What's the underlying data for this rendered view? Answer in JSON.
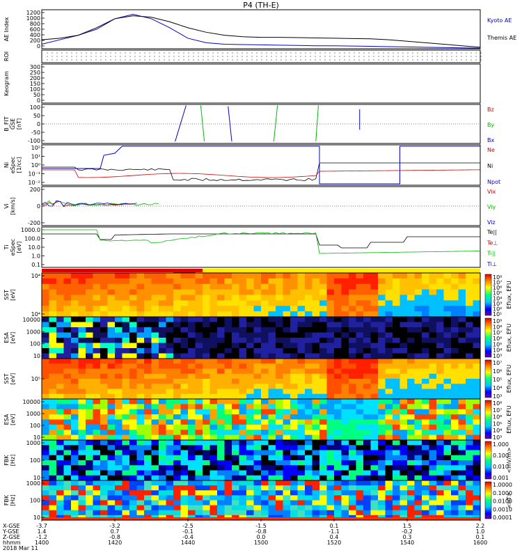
{
  "title": "P4 (TH-E)",
  "colors": {
    "kyoto": "#0000cc",
    "themis": "#000000",
    "red": "#cc0000",
    "green": "#00bb00",
    "blue": "#0000cc",
    "black": "#000000"
  },
  "chart_data": {
    "type": "line",
    "time_axis": {
      "ticks": [
        "1400",
        "1420",
        "1440",
        "1500",
        "1520",
        "1540",
        "1600"
      ],
      "date": "2018 Mar 11",
      "rows": [
        {
          "label": "X-GSE",
          "values": [
            "-3.7",
            "-3.2",
            "-2.5",
            "-1.5",
            "0.1",
            "1.5",
            "2.2"
          ]
        },
        {
          "label": "Y-GSE",
          "values": [
            "1.4",
            "0.7",
            "-0.1",
            "-0.8",
            "-1.1",
            "-0.2",
            "1.0"
          ]
        },
        {
          "label": "Z-GSE",
          "values": [
            "-1.2",
            "-0.8",
            "-0.4",
            "0.0",
            "0.4",
            "0.3",
            "0.1"
          ]
        },
        {
          "label": "hhmm",
          "values": [
            "1400",
            "1420",
            "1440",
            "1500",
            "1520",
            "1540",
            "1600"
          ]
        }
      ]
    },
    "panels": [
      {
        "id": "ae",
        "ylabel": [
          "AE Index"
        ],
        "yticks": [
          "1200",
          "1000",
          "800",
          "600",
          "400",
          "200",
          "0"
        ],
        "legend": [
          {
            "name": "Kyoto AE",
            "color": "#0000cc"
          },
          {
            "name": "Themis AE",
            "color": "#000000"
          }
        ],
        "ylim": [
          0,
          1300
        ],
        "series": [
          {
            "name": "Kyoto AE",
            "color": "#0000cc",
            "x": [
              0,
              5,
              10,
              15,
              20,
              25,
              30,
              35,
              40,
              45,
              50,
              55,
              60,
              65,
              70,
              75,
              80,
              85,
              90,
              95,
              100,
              105,
              110,
              115,
              120
            ],
            "y": [
              150,
              300,
              450,
              650,
              1000,
              1150,
              1000,
              700,
              350,
              200,
              150,
              140,
              130,
              120,
              110,
              100,
              100,
              90,
              80,
              70,
              60,
              50,
              40,
              30,
              20
            ]
          },
          {
            "name": "Themis AE",
            "color": "#000000",
            "x": [
              0,
              5,
              10,
              15,
              20,
              25,
              30,
              35,
              40,
              45,
              50,
              55,
              60,
              65,
              70,
              75,
              80,
              85,
              90,
              95,
              100,
              105,
              110,
              115,
              120
            ],
            "y": [
              300,
              350,
              450,
              700,
              1000,
              1100,
              1050,
              900,
              700,
              550,
              450,
              400,
              380,
              380,
              370,
              360,
              350,
              340,
              330,
              300,
              250,
              200,
              150,
              100,
              50
            ]
          }
        ]
      },
      {
        "id": "roi",
        "ylabel": [
          "ROI"
        ],
        "yticks": [],
        "kind": "dots"
      },
      {
        "id": "keogram",
        "ylabel": [
          "Keogram"
        ],
        "yticks": [
          "300",
          "250",
          "200",
          "150",
          "100",
          "50",
          "0"
        ],
        "ylim": [
          0,
          300
        ],
        "kind": "empty"
      },
      {
        "id": "bfit",
        "ylabel": [
          "B_FIT",
          "GSE",
          "[nT]"
        ],
        "yticks": [
          "100",
          "50",
          "0",
          "-50",
          "-100"
        ],
        "ylim": [
          -100,
          100
        ],
        "legend": [
          {
            "name": "Bz",
            "color": "#cc0000"
          },
          {
            "name": "By",
            "color": "#00bb00"
          },
          {
            "name": "Bx",
            "color": "#0000cc"
          }
        ],
        "segments": [
          {
            "color": "#0000cc",
            "x1": 36.5,
            "y1": -90,
            "x2": 39.5,
            "y2": 95
          },
          {
            "color": "#00bb00",
            "x1": 43.5,
            "y1": 95,
            "x2": 44.5,
            "y2": -90
          },
          {
            "color": "#0000cc",
            "x1": 51.0,
            "y1": 90,
            "x2": 52.0,
            "y2": -90
          },
          {
            "color": "#00bb00",
            "x1": 63.5,
            "y1": -90,
            "x2": 64.5,
            "y2": 95
          },
          {
            "color": "#00bb00",
            "x1": 75.0,
            "y1": -90,
            "x2": 75.7,
            "y2": 95
          },
          {
            "color": "#0000cc",
            "x1": 87.0,
            "y1": 75,
            "x2": 87.0,
            "y2": -30
          }
        ]
      },
      {
        "id": "density",
        "ylabel": [
          "Ni",
          "eSpec",
          "[1/cc]"
        ],
        "yticks": [
          "10²",
          "10¹",
          "10⁰",
          "10⁻¹",
          "10⁻²"
        ],
        "legend": [
          {
            "name": "Ne",
            "color": "#cc0000"
          },
          {
            "name": "Ni",
            "color": "#000000"
          },
          {
            "name": "Npot",
            "color": "#0000cc"
          }
        ]
      },
      {
        "id": "velocity",
        "ylabel": [
          "Vi",
          "[km/s]"
        ],
        "yticks": [
          "200",
          "0",
          "-200"
        ],
        "legend": [
          {
            "name": "Vix",
            "color": "#cc0000"
          },
          {
            "name": "Viy",
            "color": "#00bb00"
          },
          {
            "name": "Viz",
            "color": "#0000cc"
          }
        ]
      },
      {
        "id": "temperature",
        "ylabel": [
          "Ti",
          "eSpec",
          "[eV]"
        ],
        "yticks": [
          "1000.0",
          "100.0",
          "10.0",
          "1.0",
          "0.1"
        ],
        "legend": [
          {
            "name": "Te||",
            "color": "#000000"
          },
          {
            "name": "Te⊥",
            "color": "#cc0000"
          },
          {
            "name": "Ti||",
            "color": "#00bb00"
          },
          {
            "name": "Ti⊥",
            "color": "#0000cc"
          }
        ]
      },
      {
        "id": "sst_e",
        "ylabel": [
          "SST",
          "[eV]"
        ],
        "yticks": [
          "10⁴",
          "10⁴"
        ],
        "kind": "spectrogram",
        "colorbar": {
          "labels": [
            "10⁸",
            "10⁷",
            "10⁶",
            "10⁵",
            "10⁴",
            "10³",
            "10²",
            "10¹"
          ],
          "unit": "Eflux, EFU"
        }
      },
      {
        "id": "esa_e",
        "ylabel": [
          "ESA",
          "[eV]"
        ],
        "yticks": [
          "10000",
          "1000",
          "100",
          "10"
        ],
        "kind": "spectrogram",
        "colorbar": {
          "labels": [
            "10⁹",
            "10⁸",
            "10⁷",
            "10⁶",
            "10⁵",
            "10⁴",
            "10³"
          ],
          "unit": "Eflux, EFU"
        }
      },
      {
        "id": "sst_i",
        "ylabel": [
          "SST",
          "[eV]"
        ],
        "yticks": [
          "10⁵"
        ],
        "kind": "spectrogram",
        "colorbar": {
          "labels": [
            "10⁷",
            "10⁶",
            "10⁵",
            "10⁴",
            "10³"
          ],
          "unit": "Eflux, EFU"
        }
      },
      {
        "id": "esa_i",
        "ylabel": [
          "ESA",
          "[eV]"
        ],
        "yticks": [
          "10000",
          "1000",
          "100",
          "10"
        ],
        "kind": "spectrogram",
        "colorbar": {
          "labels": [
            "10⁸",
            "10⁷",
            "10⁶",
            "10⁵",
            "10⁴",
            "10³"
          ],
          "unit": "Eflux, EFU"
        }
      },
      {
        "id": "fbk_e",
        "ylabel": [
          "FBK",
          "[Hz]"
        ],
        "yticks": [
          "1000",
          "100",
          "10"
        ],
        "kind": "spectrogram",
        "colorbar": {
          "labels": [
            "1.000",
            "0.100",
            "0.010",
            "0.001"
          ],
          "unit": "<mV/m>"
        }
      },
      {
        "id": "fbk_b",
        "ylabel": [
          "FBK",
          "[Hz]"
        ],
        "yticks": [
          "1000",
          "100",
          "10"
        ],
        "kind": "spectrogram",
        "colorbar": {
          "labels": [
            "1.0000",
            "0.1000",
            "0.0100",
            "0.0010",
            "0.0001"
          ],
          "unit": "<nT>"
        }
      }
    ]
  }
}
